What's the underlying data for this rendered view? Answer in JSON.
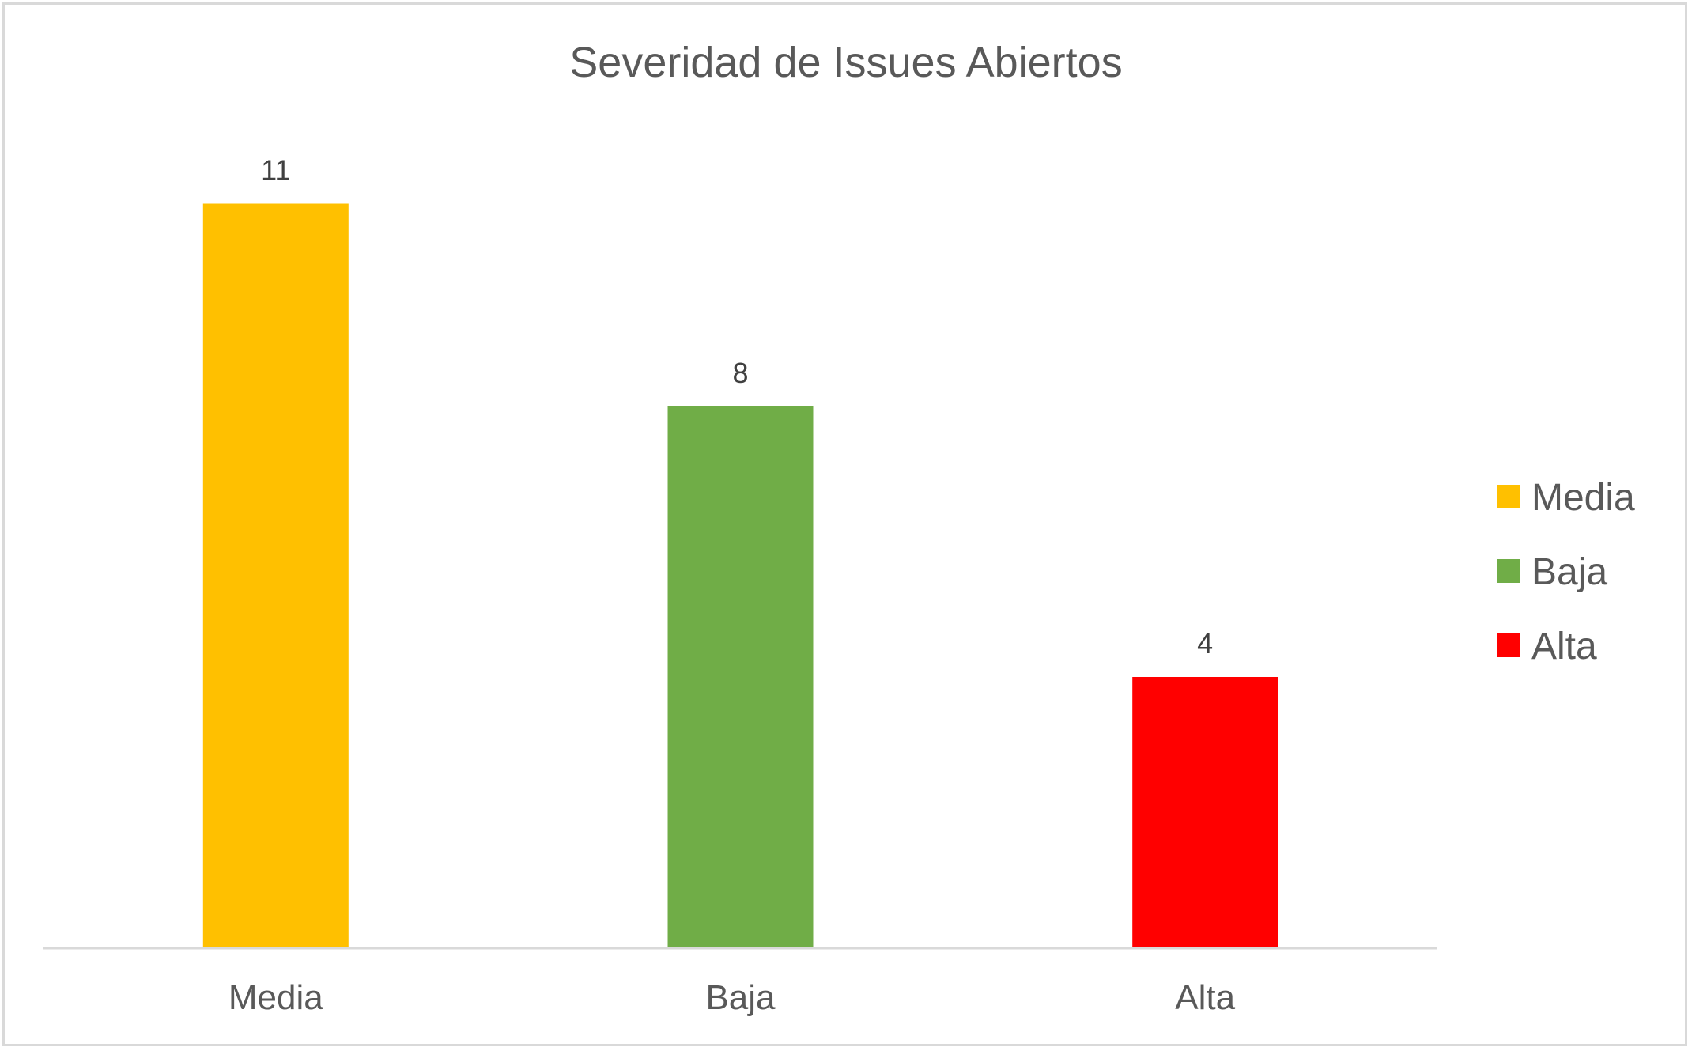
{
  "chart_data": {
    "type": "bar",
    "title": "Severidad de Issues Abiertos",
    "categories": [
      "Media",
      "Baja",
      "Alta"
    ],
    "values": [
      11,
      8,
      4
    ],
    "colors": [
      "#FFC000",
      "#70AD47",
      "#FF0000"
    ],
    "xlabel": "",
    "ylabel": "",
    "ylim": [
      0,
      12
    ],
    "grid": false,
    "data_labels": true,
    "legend": {
      "position": "right",
      "entries": [
        "Media",
        "Baja",
        "Alta"
      ]
    }
  }
}
